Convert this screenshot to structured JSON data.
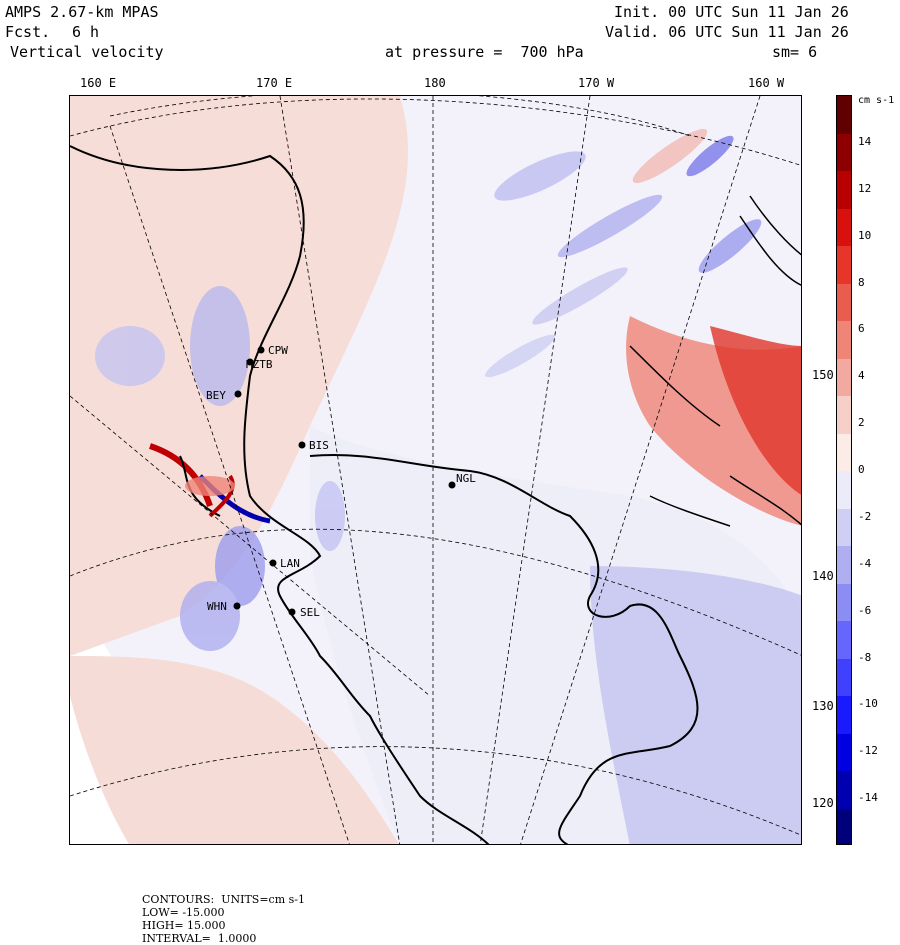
{
  "header": {
    "model": "AMPS 2.67-km MPAS",
    "forecast_label": "Fcst.",
    "forecast_hours": "6 h",
    "field": "Vertical velocity",
    "init": "Init. 00 UTC Sun 11 Jan 26",
    "valid": "Valid. 06 UTC Sun 11 Jan 26",
    "level": "at pressure =  700 hPa",
    "smoothing": "sm= 6"
  },
  "lon_labels": [
    "160 E",
    "170 E",
    "180",
    "170 W",
    "160 W"
  ],
  "lat_labels": [
    "150 W",
    "140 W",
    "130 W",
    "120 W"
  ],
  "stations": [
    {
      "name": "CPW",
      "lon": 166.8,
      "lat": -77.2
    },
    {
      "name": "MZTB",
      "lon": 164.1,
      "lat": -74.7
    },
    {
      "name": "BEY",
      "lon": 164.2,
      "lat": -74.2
    },
    {
      "name": "BIS",
      "lon": 169.0,
      "lat": -78.2
    },
    {
      "name": "NGL",
      "lon": 179.5,
      "lat": -80.6
    },
    {
      "name": "LAN",
      "lon": 163.3,
      "lat": -71.6
    },
    {
      "name": "WHN",
      "lon": 157.5,
      "lat": -70.1
    },
    {
      "name": "SEL",
      "lon": 163.2,
      "lat": -70.4
    }
  ],
  "colorbar": {
    "units": "cm s-1",
    "ticks": [
      "14",
      "12",
      "10",
      "8",
      "6",
      "4",
      "2",
      "0",
      "-2",
      "-4",
      "-6",
      "-8",
      "-10",
      "-12",
      "-14"
    ],
    "colors": [
      "#00007a",
      "#0000b0",
      "#0000e0",
      "#1a1aff",
      "#4040ff",
      "#6666ff",
      "#8c8cf5",
      "#aeaef0",
      "#cfcff4",
      "#ebebf9",
      "#fbece8",
      "#f6cfc8",
      "#f2aaa0",
      "#ee8577",
      "#ea5d4e",
      "#e8352a",
      "#d8100e",
      "#b80000",
      "#8e0000",
      "#600000"
    ]
  },
  "footer": {
    "contours": "CONTOURS:  UNITS=cm s-1",
    "low": "LOW= -15.000",
    "high": "HIGH= 15.000",
    "interval": "INTERVAL=  1.0000"
  },
  "colors": {
    "upward": "#e05040",
    "downward": "#6a6ae8",
    "neutral": "#f3f2fb"
  }
}
